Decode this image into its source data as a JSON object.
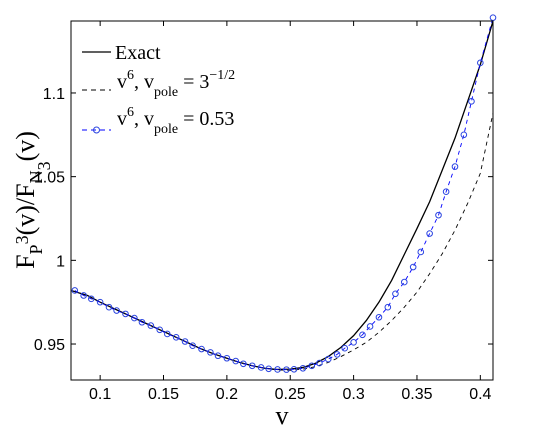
{
  "chart_data": {
    "type": "line",
    "xlabel": "v",
    "ylabel": {
      "base1": "F",
      "sub_p": "P",
      "sup3": "3",
      "mid": "(v)/F",
      "sub_n": "N",
      "sub3": "3",
      "tail": "(v)"
    },
    "xlim": [
      0.077,
      0.41
    ],
    "ylim": [
      0.9285,
      1.143
    ],
    "xticks": [
      0.1,
      0.15,
      0.2,
      0.25,
      0.3,
      0.35,
      0.4
    ],
    "xtick_labels": [
      "0.1",
      "0.15",
      "0.2",
      "0.25",
      "0.3",
      "0.35",
      "0.4"
    ],
    "yticks": [
      0.95,
      1.0,
      1.05,
      1.1
    ],
    "ytick_labels": [
      "0.95",
      "1",
      "1.05",
      "1.1"
    ],
    "grid": false,
    "legend_position": "top-left",
    "legend": {
      "exact": {
        "text": "Exact"
      },
      "pole_a": {
        "base": "v",
        "sup": "6",
        "mid": ", v",
        "sub": "pole",
        "eq": " = 3",
        "exp": "−1/2"
      },
      "pole_b": {
        "base": "v",
        "sup": "6",
        "mid": ", v",
        "sub": "pole",
        "eq": " = 0.53"
      }
    },
    "colors": {
      "exact": "#000000",
      "pole_a": "#000000",
      "pole_b": "#0000ff",
      "marker": "#2a44e0"
    },
    "series": [
      {
        "name": "Exact",
        "style": "solid",
        "x": [
          0.077,
          0.09,
          0.1,
          0.11,
          0.12,
          0.13,
          0.14,
          0.15,
          0.16,
          0.17,
          0.18,
          0.19,
          0.2,
          0.21,
          0.22,
          0.23,
          0.24,
          0.25,
          0.26,
          0.27,
          0.28,
          0.29,
          0.3,
          0.31,
          0.32,
          0.33,
          0.34,
          0.35,
          0.36,
          0.37,
          0.38,
          0.39,
          0.4,
          0.41
        ],
        "y": [
          0.982,
          0.979,
          0.975,
          0.9715,
          0.968,
          0.9645,
          0.961,
          0.9575,
          0.954,
          0.9505,
          0.947,
          0.944,
          0.9415,
          0.939,
          0.937,
          0.9355,
          0.9348,
          0.935,
          0.936,
          0.9385,
          0.9425,
          0.948,
          0.955,
          0.964,
          0.975,
          0.988,
          1.0035,
          1.019,
          1.035,
          1.054,
          1.073,
          1.095,
          1.117,
          1.143
        ]
      },
      {
        "name": "v6, vpole = 3^-1/2",
        "style": "dashed",
        "x": [
          0.077,
          0.09,
          0.1,
          0.11,
          0.12,
          0.13,
          0.14,
          0.15,
          0.16,
          0.17,
          0.18,
          0.19,
          0.2,
          0.21,
          0.22,
          0.23,
          0.24,
          0.25,
          0.26,
          0.27,
          0.28,
          0.29,
          0.3,
          0.31,
          0.32,
          0.33,
          0.34,
          0.35,
          0.36,
          0.37,
          0.38,
          0.39,
          0.4,
          0.41
        ],
        "y": [
          0.982,
          0.979,
          0.975,
          0.9715,
          0.968,
          0.9645,
          0.961,
          0.9575,
          0.954,
          0.9505,
          0.947,
          0.944,
          0.9415,
          0.939,
          0.937,
          0.9355,
          0.9345,
          0.9343,
          0.935,
          0.9365,
          0.939,
          0.9425,
          0.9465,
          0.951,
          0.957,
          0.964,
          0.972,
          0.981,
          0.992,
          1.004,
          1.018,
          1.034,
          1.052,
          1.088
        ]
      },
      {
        "name": "v6, vpole = 0.53",
        "style": "dashed-markers",
        "x": [
          0.08,
          0.087,
          0.093,
          0.1,
          0.107,
          0.113,
          0.12,
          0.127,
          0.133,
          0.14,
          0.147,
          0.153,
          0.16,
          0.167,
          0.173,
          0.18,
          0.187,
          0.193,
          0.2,
          0.207,
          0.213,
          0.22,
          0.227,
          0.233,
          0.24,
          0.247,
          0.253,
          0.26,
          0.267,
          0.273,
          0.28,
          0.287,
          0.293,
          0.3,
          0.307,
          0.313,
          0.32,
          0.327,
          0.333,
          0.34,
          0.347,
          0.353,
          0.36,
          0.367,
          0.373,
          0.38,
          0.387,
          0.393,
          0.4,
          0.41
        ],
        "y": [
          0.982,
          0.979,
          0.977,
          0.975,
          0.972,
          0.97,
          0.968,
          0.9655,
          0.963,
          0.961,
          0.9585,
          0.956,
          0.954,
          0.9515,
          0.949,
          0.947,
          0.945,
          0.943,
          0.9415,
          0.9398,
          0.9382,
          0.937,
          0.936,
          0.9352,
          0.9348,
          0.9347,
          0.9349,
          0.9355,
          0.937,
          0.9386,
          0.941,
          0.9438,
          0.9475,
          0.951,
          0.9555,
          0.9605,
          0.966,
          0.972,
          0.98,
          0.987,
          0.996,
          1.005,
          1.016,
          1.027,
          1.041,
          1.056,
          1.075,
          1.095,
          1.118,
          1.145
        ]
      }
    ]
  }
}
